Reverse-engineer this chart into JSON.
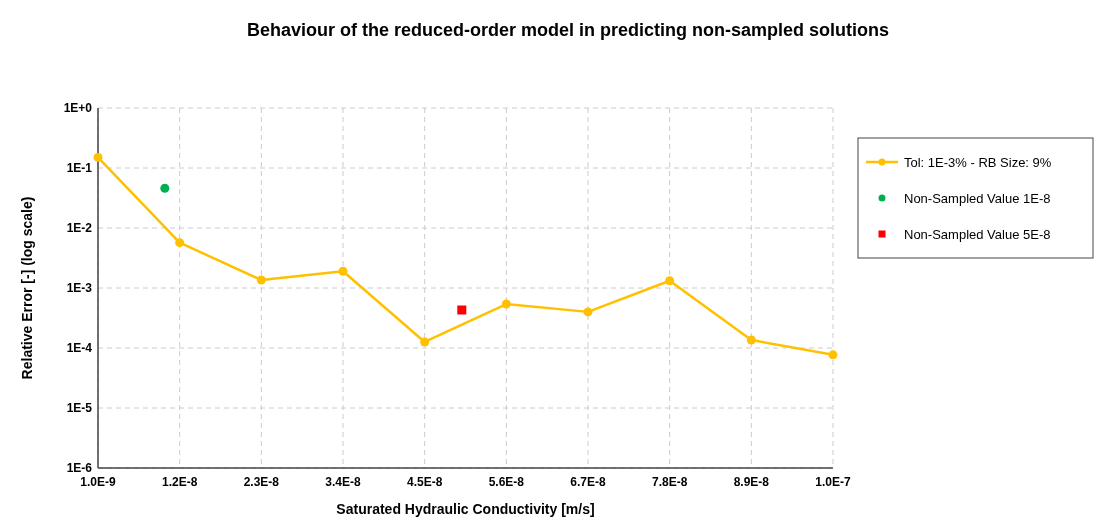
{
  "chart_data": {
    "type": "line",
    "title": "Behaviour of the reduced-order model in predicting non-sampled solutions",
    "xlabel": "Saturated Hydraulic Conductivity [m/s]",
    "ylabel": "Relative Error [-]  (log scale)",
    "log": "y",
    "grid": true,
    "legend": "right",
    "xlim": [
      1e-09,
      1e-07
    ],
    "xticks": [
      {
        "value": 1e-09,
        "label": "1.0E-9"
      },
      {
        "value": 1.2e-08,
        "label": "1.2E-8"
      },
      {
        "value": 2.3e-08,
        "label": "2.3E-8"
      },
      {
        "value": 3.4e-08,
        "label": "3.4E-8"
      },
      {
        "value": 4.5e-08,
        "label": "4.5E-8"
      },
      {
        "value": 5.6e-08,
        "label": "5.6E-8"
      },
      {
        "value": 6.7e-08,
        "label": "6.7E-8"
      },
      {
        "value": 7.8e-08,
        "label": "7.8E-8"
      },
      {
        "value": 8.9e-08,
        "label": "8.9E-8"
      },
      {
        "value": 1e-07,
        "label": "1.0E-7"
      }
    ],
    "ylim": [
      1e-06,
      1
    ],
    "yticks": [
      {
        "value": 1e-06,
        "label": "1E-6"
      },
      {
        "value": 1e-05,
        "label": "1E-5"
      },
      {
        "value": 0.0001,
        "label": "1E-4"
      },
      {
        "value": 0.001,
        "label": "1E-3"
      },
      {
        "value": 0.01,
        "label": "1E-2"
      },
      {
        "value": 0.1,
        "label": "1E-1"
      },
      {
        "value": 1,
        "label": "1E+0"
      }
    ],
    "series": [
      {
        "name": "Tol: 1E-3% - RB Size: 9%",
        "color": "#ffc000",
        "marker": "circle",
        "x": [
          1e-09,
          1.2e-08,
          2.3e-08,
          3.4e-08,
          4.5e-08,
          5.6e-08,
          6.7e-08,
          7.8e-08,
          8.9e-08,
          1e-07
        ],
        "values": [
          0.15,
          0.0057,
          0.00136,
          0.0019,
          0.000126,
          0.00054,
          0.0004,
          0.00132,
          0.000136,
          7.7e-05
        ]
      },
      {
        "name": "Non-Sampled Value 1E-8",
        "type": "scatter",
        "color": "#00b050",
        "marker": "circle",
        "x": [
          1e-08
        ],
        "values": [
          0.046
        ]
      },
      {
        "name": "Non-Sampled Value 5E-8",
        "type": "scatter",
        "color": "#ff0000",
        "marker": "square",
        "x": [
          5e-08
        ],
        "values": [
          0.00043
        ]
      }
    ]
  }
}
